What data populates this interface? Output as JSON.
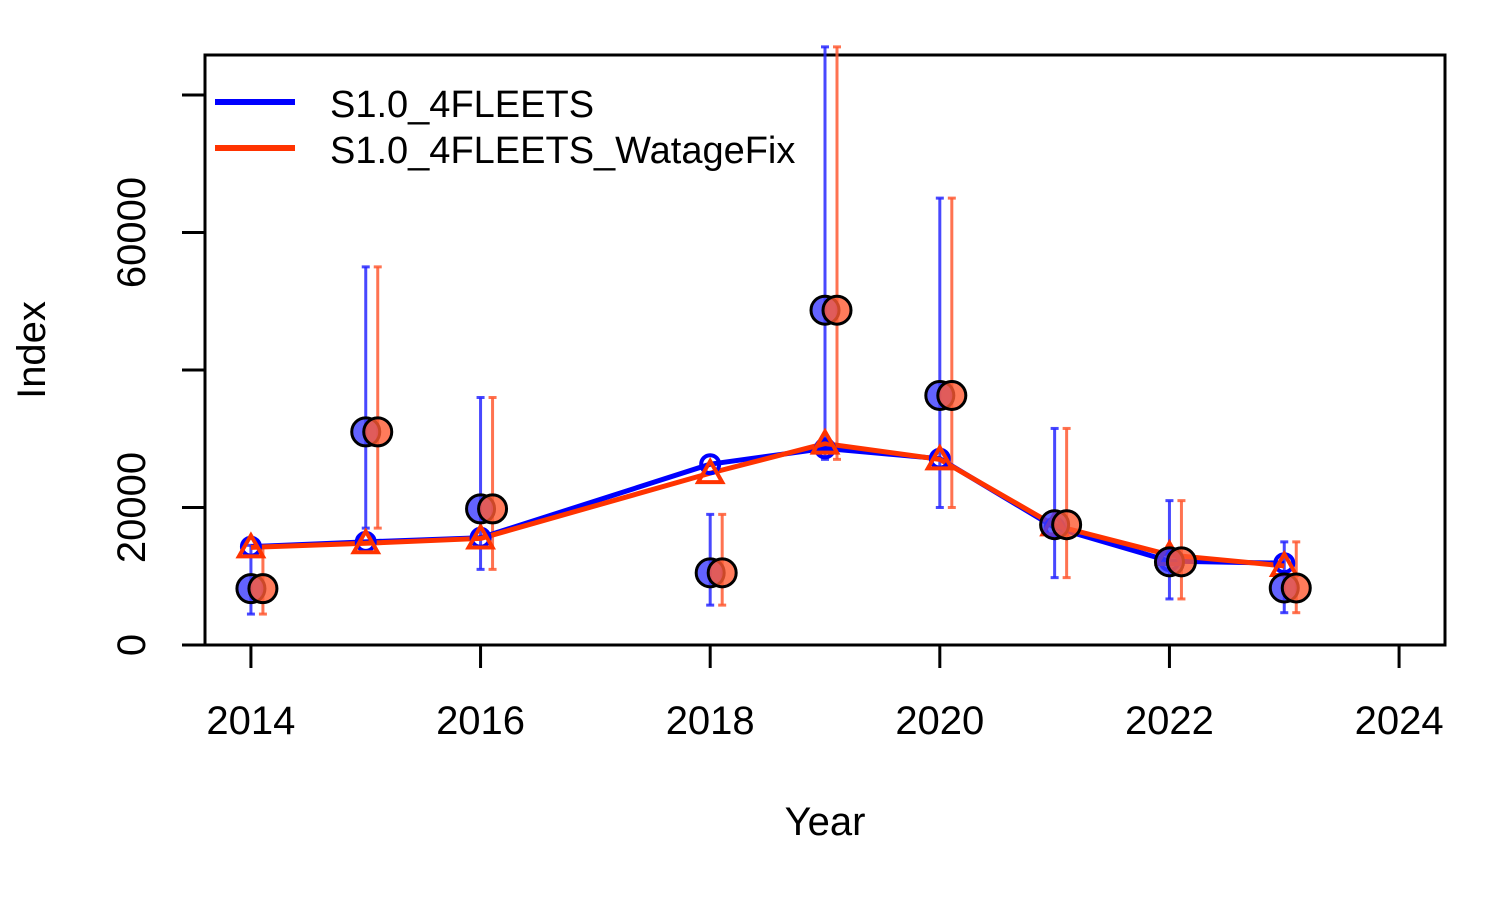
{
  "chart_data": {
    "type": "line",
    "title": "",
    "xlabel": "Year",
    "ylabel": "Index",
    "xlim": [
      2013.6,
      2024.4
    ],
    "ylim": [
      0,
      80000
    ],
    "x_ticks": [
      2014,
      2016,
      2018,
      2020,
      2022,
      2024
    ],
    "y_ticks": [
      0,
      20000,
      40000,
      60000,
      80000
    ],
    "y_tick_labels": [
      "0",
      "20000",
      "",
      "60000",
      ""
    ],
    "legend_position": "top-left",
    "grid": false,
    "observed": {
      "x": [
        2014,
        2015,
        2016,
        2018,
        2019,
        2020,
        2021,
        2022,
        2023
      ],
      "y": [
        8200,
        31000,
        19800,
        10500,
        48700,
        36300,
        17500,
        12100,
        8300
      ],
      "lower": [
        4500,
        17000,
        11000,
        5800,
        27000,
        20000,
        9800,
        6700,
        4700
      ],
      "upper": [
        14500,
        55000,
        36000,
        19000,
        87000,
        65000,
        31500,
        21000,
        15000
      ]
    },
    "series": [
      {
        "name": "S1.0_4FLEETS",
        "color": "#0000ff",
        "marker": "circle",
        "x": [
          2014,
          2015,
          2016,
          2018,
          2019,
          2020,
          2021,
          2022,
          2023
        ],
        "y": [
          14300,
          15000,
          15600,
          26300,
          28600,
          27100,
          17100,
          12200,
          11900
        ]
      },
      {
        "name": "S1.0_4FLEETS_WatageFix",
        "color": "#ff3300",
        "marker": "triangle",
        "x": [
          2014,
          2015,
          2016,
          2018,
          2019,
          2020,
          2021,
          2022,
          2023
        ],
        "y": [
          14200,
          14800,
          15500,
          25000,
          29300,
          27000,
          17400,
          13100,
          11500
        ]
      }
    ]
  }
}
